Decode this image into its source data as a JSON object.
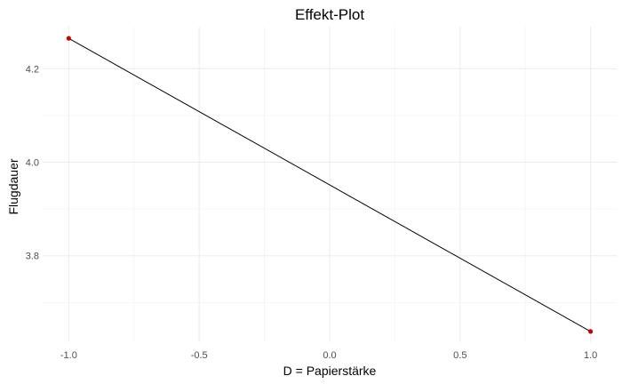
{
  "chart_data": {
    "type": "line",
    "title": "Effekt-Plot",
    "xlabel": "D = Papierstärke",
    "ylabel": "Flugdauer",
    "x": [
      -1.0,
      1.0
    ],
    "series": [
      {
        "values": [
          4.265,
          3.638
        ]
      }
    ],
    "xlim": [
      -1.1,
      1.1
    ],
    "ylim": [
      3.615,
      4.29
    ],
    "xticks": [
      -1.0,
      -0.5,
      0.0,
      0.5,
      1.0
    ],
    "xtick_labels": [
      "-1.0",
      "-0.5",
      "0.0",
      "0.5",
      "1.0"
    ],
    "yticks": [
      3.8,
      4.0,
      4.2
    ],
    "ytick_labels": [
      "3.8",
      "4.0",
      "4.2"
    ],
    "grid": true,
    "legend": "none",
    "line_color": "#000000",
    "point_color": "#cc0000"
  }
}
